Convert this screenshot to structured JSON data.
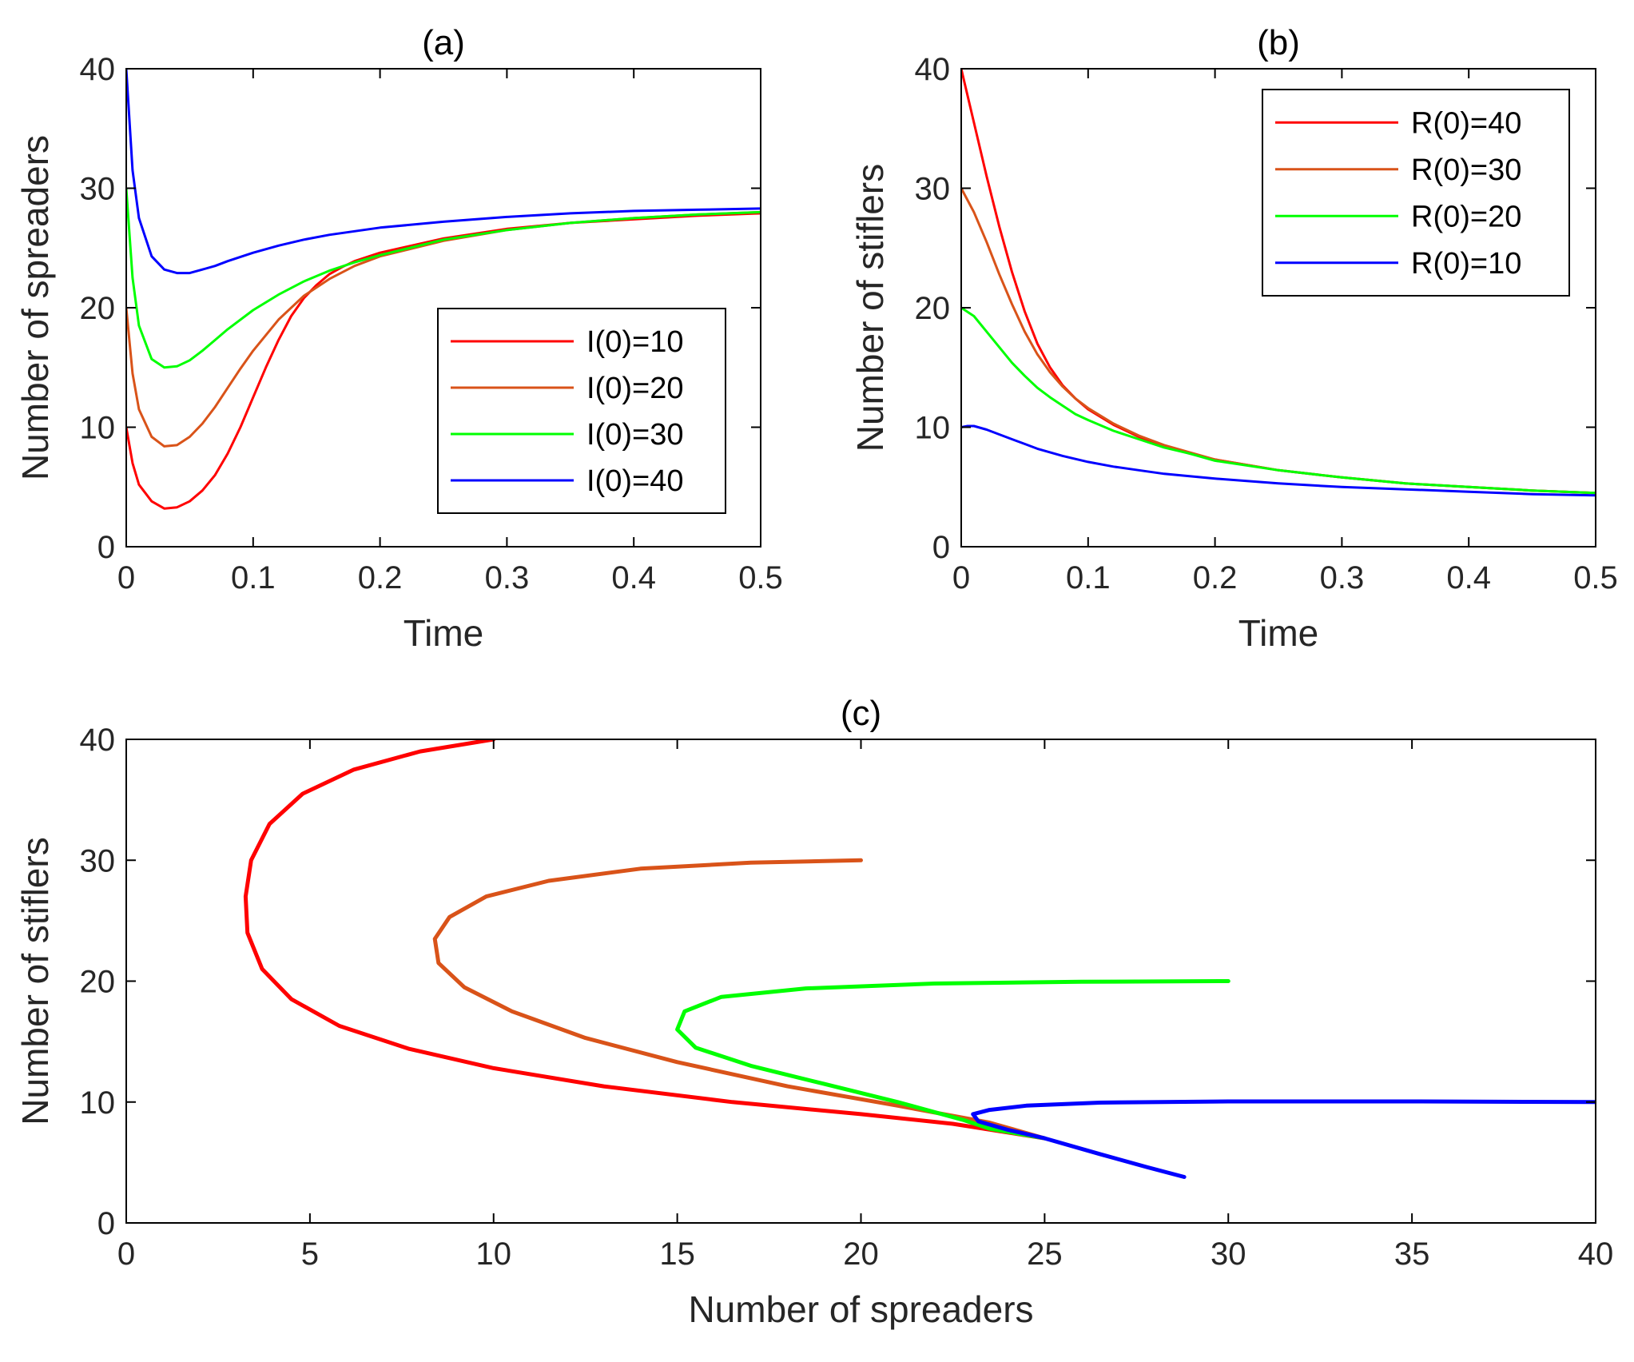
{
  "chart_data": [
    {
      "id": "a",
      "type": "line",
      "title": "(a)",
      "xlabel": "Time",
      "ylabel": "Number of spreaders",
      "xlim": [
        0,
        0.5
      ],
      "ylim": [
        0,
        40
      ],
      "xticks": [
        0,
        0.1,
        0.2,
        0.3,
        0.4,
        0.5
      ],
      "yticks": [
        0,
        10,
        20,
        30,
        40
      ],
      "xtick_labels": [
        "0",
        "0.1",
        "0.2",
        "0.3",
        "0.4",
        "0.5"
      ],
      "ytick_labels": [
        "0",
        "10",
        "20",
        "30",
        "40"
      ],
      "legend": "right-middle",
      "grid": false,
      "series": [
        {
          "name": "I(0)=10",
          "color": "#ff0000",
          "x": [
            0,
            0.005,
            0.01,
            0.02,
            0.03,
            0.04,
            0.05,
            0.06,
            0.07,
            0.08,
            0.09,
            0.1,
            0.11,
            0.12,
            0.13,
            0.14,
            0.15,
            0.16,
            0.17,
            0.18,
            0.2,
            0.25,
            0.3,
            0.35,
            0.4,
            0.45,
            0.5
          ],
          "y": [
            10,
            7,
            5.2,
            3.8,
            3.2,
            3.3,
            3.8,
            4.7,
            6.0,
            7.8,
            10.0,
            12.5,
            15.0,
            17.3,
            19.3,
            20.8,
            21.9,
            22.8,
            23.4,
            23.9,
            24.6,
            25.8,
            26.6,
            27.1,
            27.4,
            27.7,
            27.9
          ]
        },
        {
          "name": "I(0)=20",
          "color": "#d95319",
          "x": [
            0,
            0.005,
            0.01,
            0.02,
            0.03,
            0.04,
            0.05,
            0.06,
            0.07,
            0.08,
            0.09,
            0.1,
            0.12,
            0.14,
            0.16,
            0.18,
            0.2,
            0.25,
            0.3,
            0.35,
            0.4,
            0.45,
            0.5
          ],
          "y": [
            20,
            14.5,
            11.5,
            9.2,
            8.4,
            8.5,
            9.2,
            10.3,
            11.7,
            13.3,
            14.9,
            16.4,
            19.0,
            21.0,
            22.4,
            23.5,
            24.3,
            25.6,
            26.5,
            27.1,
            27.5,
            27.8,
            28.0
          ]
        },
        {
          "name": "I(0)=30",
          "color": "#00ff00",
          "x": [
            0,
            0.005,
            0.01,
            0.02,
            0.03,
            0.04,
            0.05,
            0.06,
            0.07,
            0.08,
            0.1,
            0.12,
            0.14,
            0.16,
            0.18,
            0.2,
            0.25,
            0.3,
            0.35,
            0.4,
            0.45,
            0.5
          ],
          "y": [
            30,
            22.5,
            18.5,
            15.7,
            15.0,
            15.1,
            15.6,
            16.4,
            17.3,
            18.2,
            19.8,
            21.1,
            22.2,
            23.1,
            23.8,
            24.4,
            25.7,
            26.5,
            27.1,
            27.5,
            27.8,
            28.0
          ]
        },
        {
          "name": "I(0)=40",
          "color": "#0000ff",
          "x": [
            0,
            0.005,
            0.01,
            0.02,
            0.03,
            0.04,
            0.05,
            0.06,
            0.07,
            0.08,
            0.1,
            0.12,
            0.14,
            0.16,
            0.18,
            0.2,
            0.25,
            0.3,
            0.35,
            0.4,
            0.45,
            0.5
          ],
          "y": [
            40,
            31.5,
            27.5,
            24.3,
            23.2,
            22.9,
            22.9,
            23.2,
            23.5,
            23.9,
            24.6,
            25.2,
            25.7,
            26.1,
            26.4,
            26.7,
            27.2,
            27.6,
            27.9,
            28.1,
            28.2,
            28.3
          ]
        }
      ]
    },
    {
      "id": "b",
      "type": "line",
      "title": "(b)",
      "xlabel": "Time",
      "ylabel": "Number of stiflers",
      "xlim": [
        0,
        0.5
      ],
      "ylim": [
        0,
        40
      ],
      "xticks": [
        0,
        0.1,
        0.2,
        0.3,
        0.4,
        0.5
      ],
      "yticks": [
        0,
        10,
        20,
        30,
        40
      ],
      "xtick_labels": [
        "0",
        "0.1",
        "0.2",
        "0.3",
        "0.4",
        "0.5"
      ],
      "ytick_labels": [
        "0",
        "10",
        "20",
        "30",
        "40"
      ],
      "legend": "top-right",
      "grid": false,
      "series": [
        {
          "name": "R(0)=40",
          "color": "#ff0000",
          "x": [
            0,
            0.01,
            0.02,
            0.03,
            0.04,
            0.05,
            0.06,
            0.07,
            0.08,
            0.09,
            0.1,
            0.12,
            0.14,
            0.16,
            0.18,
            0.2,
            0.25,
            0.3,
            0.35,
            0.4,
            0.45,
            0.5
          ],
          "y": [
            40,
            35.5,
            31.0,
            26.8,
            23.0,
            19.7,
            17.0,
            15.0,
            13.5,
            12.4,
            11.5,
            10.2,
            9.2,
            8.4,
            7.8,
            7.3,
            6.4,
            5.8,
            5.3,
            5.0,
            4.7,
            4.5
          ]
        },
        {
          "name": "R(0)=30",
          "color": "#d95319",
          "x": [
            0,
            0.01,
            0.02,
            0.03,
            0.04,
            0.05,
            0.06,
            0.07,
            0.08,
            0.09,
            0.1,
            0.12,
            0.14,
            0.16,
            0.18,
            0.2,
            0.25,
            0.3,
            0.35,
            0.4,
            0.45,
            0.5
          ],
          "y": [
            30,
            28.0,
            25.5,
            22.8,
            20.3,
            18.0,
            16.1,
            14.6,
            13.4,
            12.4,
            11.6,
            10.3,
            9.3,
            8.5,
            7.9,
            7.3,
            6.4,
            5.8,
            5.3,
            5.0,
            4.7,
            4.5
          ]
        },
        {
          "name": "R(0)=20",
          "color": "#00ff00",
          "x": [
            0,
            0.01,
            0.02,
            0.03,
            0.04,
            0.05,
            0.06,
            0.07,
            0.08,
            0.09,
            0.1,
            0.12,
            0.14,
            0.16,
            0.18,
            0.2,
            0.25,
            0.3,
            0.35,
            0.4,
            0.45,
            0.5
          ],
          "y": [
            20,
            19.3,
            18.0,
            16.7,
            15.4,
            14.3,
            13.3,
            12.5,
            11.8,
            11.1,
            10.6,
            9.7,
            9.0,
            8.3,
            7.8,
            7.2,
            6.4,
            5.8,
            5.3,
            5.0,
            4.7,
            4.5
          ]
        },
        {
          "name": "R(0)=10",
          "color": "#0000ff",
          "x": [
            0,
            0.005,
            0.01,
            0.02,
            0.03,
            0.04,
            0.05,
            0.06,
            0.07,
            0.08,
            0.1,
            0.12,
            0.14,
            0.16,
            0.18,
            0.2,
            0.25,
            0.3,
            0.35,
            0.4,
            0.45,
            0.5
          ],
          "y": [
            10,
            10.1,
            10.1,
            9.8,
            9.4,
            9.0,
            8.6,
            8.2,
            7.9,
            7.6,
            7.1,
            6.7,
            6.4,
            6.1,
            5.9,
            5.7,
            5.3,
            5.0,
            4.8,
            4.6,
            4.4,
            4.3
          ]
        }
      ]
    },
    {
      "id": "c",
      "type": "line",
      "title": "(c)",
      "xlabel": "Number of spreaders",
      "ylabel": "Number of stiflers",
      "xlim": [
        0,
        40
      ],
      "ylim": [
        0,
        40
      ],
      "xticks": [
        0,
        5,
        10,
        15,
        20,
        25,
        30,
        35,
        40
      ],
      "yticks": [
        0,
        10,
        20,
        30,
        40
      ],
      "xtick_labels": [
        "0",
        "5",
        "10",
        "15",
        "20",
        "25",
        "30",
        "35",
        "40"
      ],
      "ytick_labels": [
        "0",
        "10",
        "20",
        "30",
        "40"
      ],
      "grid": false,
      "series": [
        {
          "color": "#ff0000",
          "x": [
            10,
            8.0,
            6.2,
            4.8,
            3.9,
            3.4,
            3.25,
            3.3,
            3.7,
            4.5,
            5.8,
            7.7,
            10.0,
            13.0,
            16.5,
            20.0,
            22.5,
            25.0
          ],
          "y": [
            40,
            39.0,
            37.5,
            35.5,
            33.0,
            30.0,
            27.0,
            24.0,
            21.0,
            18.5,
            16.3,
            14.4,
            12.8,
            11.3,
            10.0,
            9.0,
            8.2,
            7.0
          ]
        },
        {
          "color": "#d95319",
          "x": [
            20,
            17.0,
            14.0,
            11.5,
            9.8,
            8.8,
            8.4,
            8.5,
            9.2,
            10.5,
            12.5,
            15.0,
            18.0,
            21.0,
            23.5,
            25.0
          ],
          "y": [
            30,
            29.8,
            29.3,
            28.3,
            27.0,
            25.3,
            23.5,
            21.5,
            19.5,
            17.5,
            15.3,
            13.3,
            11.3,
            9.7,
            8.3,
            7.0
          ]
        },
        {
          "color": "#00ff00",
          "x": [
            30,
            26.0,
            22.0,
            18.5,
            16.2,
            15.2,
            15.0,
            15.5,
            17.0,
            19.0,
            21.0,
            22.8,
            23.5,
            25.0
          ],
          "y": [
            20,
            19.95,
            19.8,
            19.4,
            18.7,
            17.5,
            16.0,
            14.5,
            13.0,
            11.5,
            10.0,
            8.5,
            7.8,
            7.0
          ]
        },
        {
          "color": "#0000ff",
          "x": [
            40,
            35.0,
            30.0,
            26.5,
            24.5,
            23.5,
            23.05,
            23.2,
            24.0,
            25.0,
            26.5,
            27.8,
            28.8
          ],
          "y": [
            10,
            10.05,
            10.05,
            9.95,
            9.7,
            9.35,
            9.0,
            8.4,
            7.7,
            7.0,
            5.7,
            4.6,
            3.8
          ]
        }
      ]
    }
  ]
}
